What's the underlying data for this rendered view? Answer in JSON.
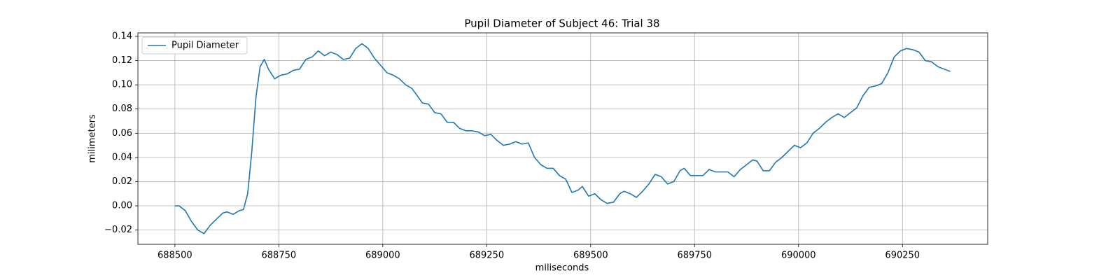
{
  "chart_data": {
    "type": "line",
    "title": "Pupil Diameter of Subject 46: Trial 38",
    "x_label": "miliseconds",
    "y_label": "milimeters",
    "x": [
      688500,
      688510,
      688525,
      688540,
      688555,
      688570,
      688585,
      688600,
      688615,
      688625,
      688640,
      688655,
      688665,
      688675,
      688685,
      688695,
      688705,
      688715,
      688725,
      688740,
      688755,
      688770,
      688785,
      688800,
      688815,
      688830,
      688845,
      688860,
      688875,
      688890,
      688905,
      688920,
      688935,
      688950,
      688965,
      688980,
      688995,
      689010,
      689025,
      689040,
      689055,
      689070,
      689085,
      689095,
      689110,
      689125,
      689140,
      689155,
      689170,
      689185,
      689200,
      689215,
      689230,
      689245,
      689260,
      689275,
      689290,
      689305,
      689320,
      689335,
      689350,
      689365,
      689380,
      689395,
      689410,
      689425,
      689440,
      689455,
      689470,
      689480,
      689495,
      689510,
      689525,
      689540,
      689555,
      689570,
      689580,
      689595,
      689610,
      689625,
      689640,
      689655,
      689670,
      689685,
      689700,
      689715,
      689725,
      689740,
      689755,
      689770,
      689785,
      689800,
      689815,
      689830,
      689845,
      689860,
      689875,
      689890,
      689900,
      689915,
      689930,
      689945,
      689960,
      689975,
      689990,
      690005,
      690020,
      690035,
      690050,
      690065,
      690080,
      690095,
      690110,
      690125,
      690140,
      690155,
      690170,
      690185,
      690200,
      690215,
      690230,
      690245,
      690260,
      690275,
      690290,
      690305,
      690320,
      690335,
      690350,
      690365
    ],
    "series": [
      {
        "name": "Pupil Diameter",
        "color": "#1f77b4",
        "values": [
          0.0,
          0.0,
          -0.004,
          -0.013,
          -0.02,
          -0.023,
          -0.016,
          -0.011,
          -0.006,
          -0.005,
          -0.007,
          -0.004,
          -0.003,
          0.01,
          0.045,
          0.09,
          0.115,
          0.121,
          0.113,
          0.105,
          0.108,
          0.109,
          0.112,
          0.113,
          0.121,
          0.123,
          0.128,
          0.124,
          0.127,
          0.125,
          0.121,
          0.122,
          0.13,
          0.134,
          0.13,
          0.122,
          0.116,
          0.11,
          0.108,
          0.105,
          0.1,
          0.097,
          0.09,
          0.085,
          0.084,
          0.077,
          0.076,
          0.069,
          0.069,
          0.064,
          0.062,
          0.062,
          0.061,
          0.058,
          0.059,
          0.054,
          0.05,
          0.051,
          0.053,
          0.051,
          0.052,
          0.04,
          0.034,
          0.031,
          0.031,
          0.025,
          0.022,
          0.011,
          0.013,
          0.016,
          0.008,
          0.01,
          0.005,
          0.002,
          0.003,
          0.01,
          0.012,
          0.01,
          0.007,
          0.012,
          0.018,
          0.026,
          0.024,
          0.018,
          0.02,
          0.029,
          0.031,
          0.025,
          0.025,
          0.025,
          0.03,
          0.028,
          0.028,
          0.028,
          0.024,
          0.03,
          0.034,
          0.038,
          0.037,
          0.029,
          0.029,
          0.036,
          0.04,
          0.045,
          0.05,
          0.048,
          0.052,
          0.06,
          0.064,
          0.069,
          0.073,
          0.076,
          0.073,
          0.077,
          0.081,
          0.091,
          0.098,
          0.099,
          0.101,
          0.11,
          0.123,
          0.128,
          0.13,
          0.129,
          0.127,
          0.12,
          0.119,
          0.115,
          0.113,
          0.111
        ]
      }
    ],
    "xlim": [
      688411,
      690455
    ],
    "xticks": [
      688500,
      688750,
      689000,
      689250,
      689500,
      689750,
      690000,
      690250
    ],
    "ylim": [
      -0.0318,
      0.1429
    ],
    "yticks": [
      {
        "value": -0.02,
        "label": "−0.02"
      },
      {
        "value": 0,
        "label": "0.00"
      },
      {
        "value": 0.02,
        "label": "0.02"
      },
      {
        "value": 0.04,
        "label": "0.04"
      },
      {
        "value": 0.06,
        "label": "0.06"
      },
      {
        "value": 0.08,
        "label": "0.08"
      },
      {
        "value": 0.1,
        "label": "0.10"
      },
      {
        "value": 0.12,
        "label": "0.12"
      },
      {
        "value": 0.14,
        "label": "0.14"
      }
    ],
    "grid": true,
    "legend": "upper left"
  }
}
